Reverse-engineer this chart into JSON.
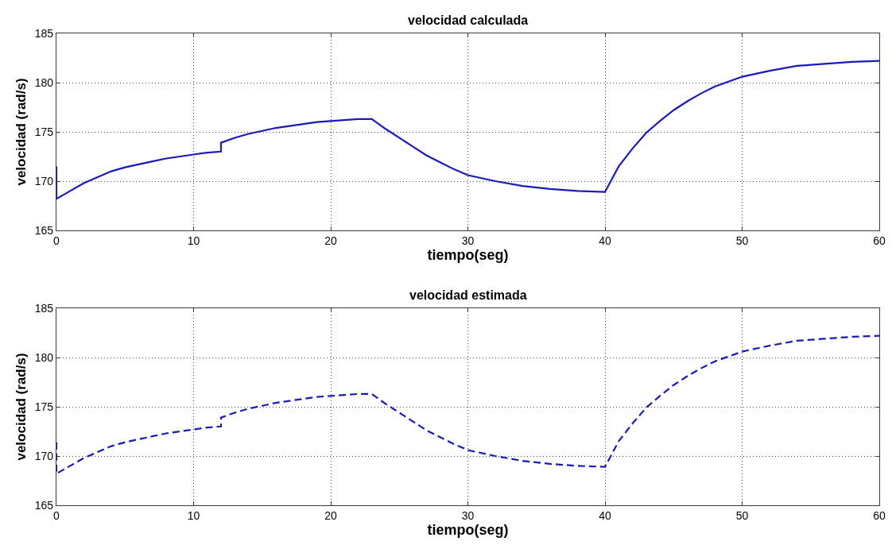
{
  "chart_data": [
    {
      "type": "line",
      "title": "velocidad calculada",
      "xlabel": "tiempo(seg)",
      "ylabel": "velocidad (rad/s)",
      "x": [
        0,
        0,
        0.5,
        1,
        2,
        3,
        4,
        5,
        6,
        7,
        8,
        9,
        10,
        11,
        12,
        12,
        13,
        14,
        15,
        16,
        17,
        18,
        19,
        20,
        21,
        22,
        23,
        24,
        25,
        26,
        27,
        28,
        29,
        30,
        32,
        34,
        36,
        38,
        40,
        40.5,
        41,
        42,
        43,
        44,
        45,
        46,
        47,
        48,
        49,
        50,
        52,
        54,
        56,
        58,
        60
      ],
      "series": [
        {
          "color": "#1a1ab8",
          "values": [
            171.5,
            168.2,
            168.6,
            169.0,
            169.8,
            170.4,
            171.0,
            171.4,
            171.7,
            172.0,
            172.3,
            172.5,
            172.7,
            172.9,
            173.0,
            173.9,
            174.4,
            174.8,
            175.1,
            175.4,
            175.6,
            175.8,
            176.0,
            176.1,
            176.2,
            176.3,
            176.3,
            175.3,
            174.4,
            173.5,
            172.6,
            171.9,
            171.2,
            170.6,
            170.0,
            169.5,
            169.2,
            169.0,
            168.9,
            170.2,
            171.5,
            173.3,
            174.9,
            176.1,
            177.2,
            178.1,
            178.9,
            179.6,
            180.1,
            180.6,
            181.2,
            181.7,
            181.9,
            182.1,
            182.2
          ]
        }
      ],
      "xlim": [
        0,
        60
      ],
      "ylim": [
        165,
        185
      ],
      "xticks": [
        0,
        10,
        20,
        30,
        40,
        50,
        60
      ],
      "yticks": [
        165,
        170,
        175,
        180,
        185
      ],
      "grid": true,
      "line_style": "solid"
    },
    {
      "type": "line",
      "title": "velocidad estimada",
      "xlabel": "tiempo(seg)",
      "ylabel": "velocidad (rad/s)",
      "x": [
        0,
        0,
        0.5,
        1,
        2,
        3,
        4,
        5,
        6,
        7,
        8,
        9,
        10,
        11,
        12,
        12,
        13,
        14,
        15,
        16,
        17,
        18,
        19,
        20,
        21,
        22,
        23,
        24,
        25,
        26,
        27,
        28,
        29,
        30,
        32,
        34,
        36,
        38,
        40,
        40.5,
        41,
        42,
        43,
        44,
        45,
        46,
        47,
        48,
        49,
        50,
        52,
        54,
        56,
        58,
        60
      ],
      "series": [
        {
          "color": "#1a1ab8",
          "values": [
            171.4,
            168.2,
            168.6,
            169.0,
            169.8,
            170.4,
            171.0,
            171.4,
            171.7,
            172.0,
            172.3,
            172.5,
            172.7,
            172.9,
            173.0,
            173.9,
            174.4,
            174.8,
            175.1,
            175.4,
            175.6,
            175.8,
            176.0,
            176.1,
            176.2,
            176.3,
            176.3,
            175.3,
            174.4,
            173.5,
            172.6,
            171.9,
            171.2,
            170.6,
            170.0,
            169.5,
            169.2,
            169.0,
            168.9,
            170.2,
            171.5,
            173.3,
            174.9,
            176.1,
            177.2,
            178.1,
            178.9,
            179.6,
            180.1,
            180.6,
            181.2,
            181.7,
            181.9,
            182.1,
            182.2
          ]
        }
      ],
      "xlim": [
        0,
        60
      ],
      "ylim": [
        165,
        185
      ],
      "xticks": [
        0,
        10,
        20,
        30,
        40,
        50,
        60
      ],
      "yticks": [
        165,
        170,
        175,
        180,
        185
      ],
      "grid": true,
      "line_style": "dashed"
    }
  ]
}
